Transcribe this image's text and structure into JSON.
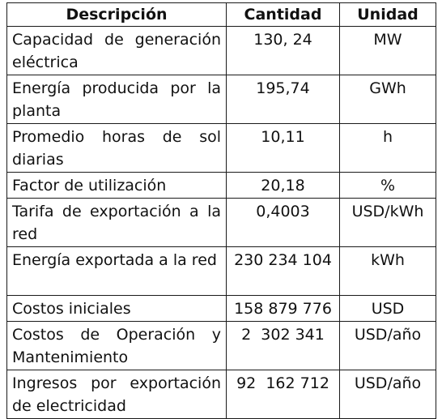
{
  "table": {
    "headers": [
      "Descripción",
      "Cantidad",
      "Unidad"
    ],
    "rows": [
      {
        "description": "Capacidad de generación eléctrica",
        "quantity": "130, 24",
        "unit": "MW"
      },
      {
        "description": "Energía producida por la planta",
        "quantity": "195,74",
        "unit": "GWh"
      },
      {
        "description": "Promedio horas de sol diarias",
        "quantity": "10,11",
        "unit": "h"
      },
      {
        "description": "Factor de utilización",
        "quantity": "20,18",
        "unit": "%"
      },
      {
        "description": "Tarifa de exportación a la red",
        "quantity": "0,4003",
        "unit": "USD/kWh"
      },
      {
        "description": "Energía exportada a la red",
        "quantity": "230 234 104",
        "unit": "kWh"
      },
      {
        "description": "Costos iniciales",
        "quantity": "158 879 776",
        "unit": "USD"
      },
      {
        "description": "Costos de Operación y Mantenimiento",
        "quantity": "2  302 341",
        "unit": "USD/año"
      },
      {
        "description": "Ingresos por exportación de electricidad",
        "quantity": "92  162 712",
        "unit": "USD/año"
      }
    ]
  }
}
